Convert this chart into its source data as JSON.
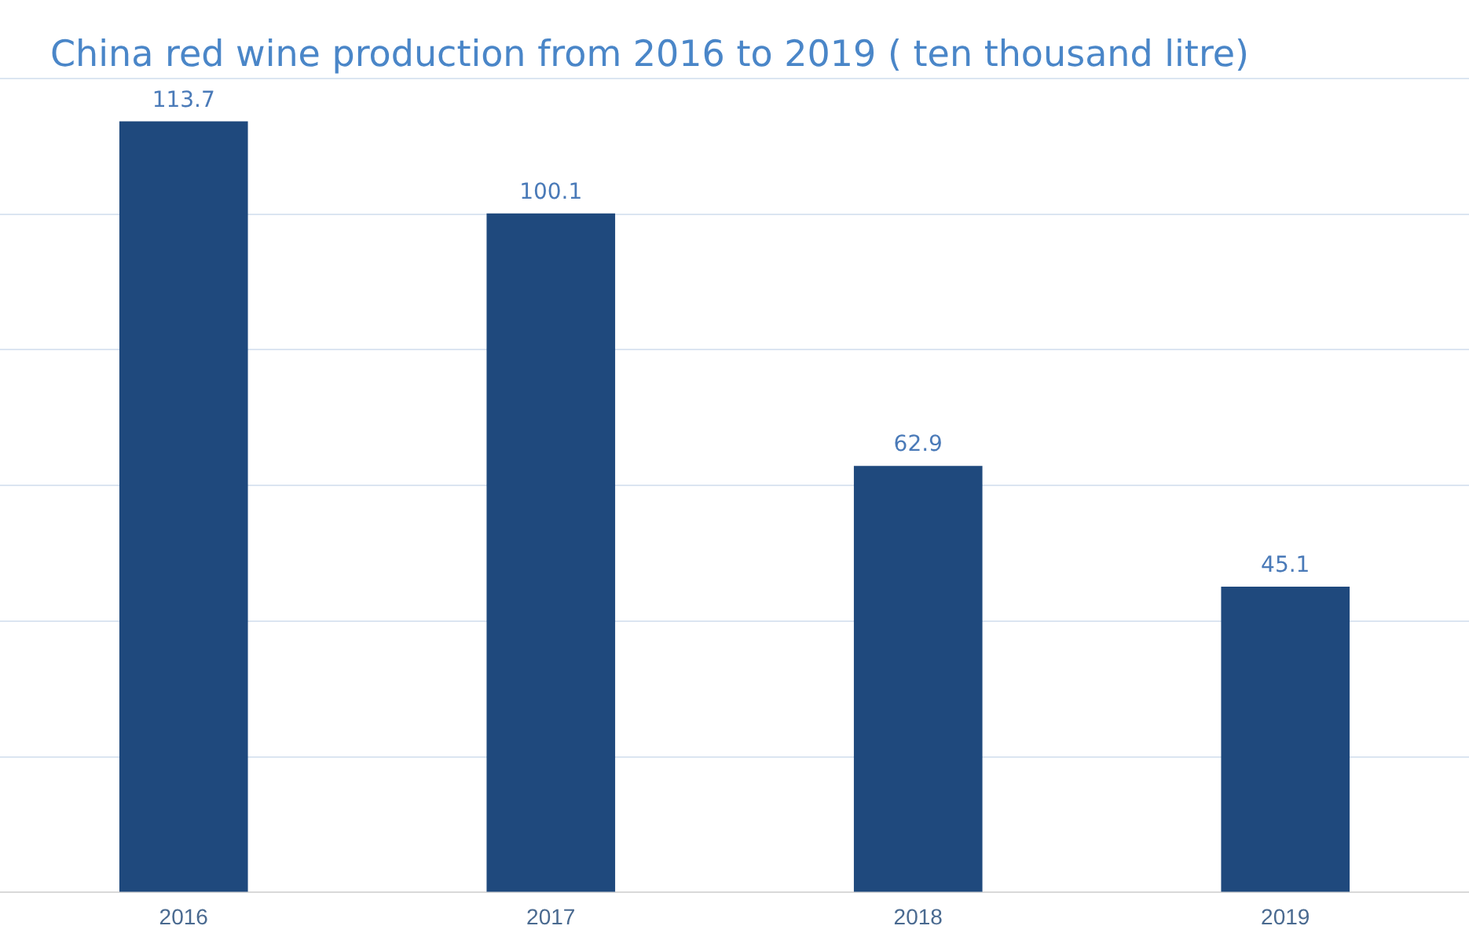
{
  "chart_data": {
    "type": "bar",
    "title": "China red wine production from 2016 to 2019 ( ten thousand litre)",
    "categories": [
      "2016",
      "2017",
      "2018",
      "2019"
    ],
    "values": [
      113.7,
      100.1,
      62.9,
      45.1
    ],
    "color": "#1f497d",
    "ylim": [
      0,
      120
    ],
    "yticks": [
      {
        "value": 0,
        "label": null
      },
      {
        "value": 20,
        "label": null
      },
      {
        "value": 40,
        "label": null
      },
      {
        "value": 60,
        "label": null
      },
      {
        "value": 80,
        "label": null
      },
      {
        "value": 100,
        "label": null
      },
      {
        "value": 120,
        "label": null
      }
    ],
    "tick_labels": "x",
    "grid": "y",
    "legend": false,
    "data_labels": true
  }
}
